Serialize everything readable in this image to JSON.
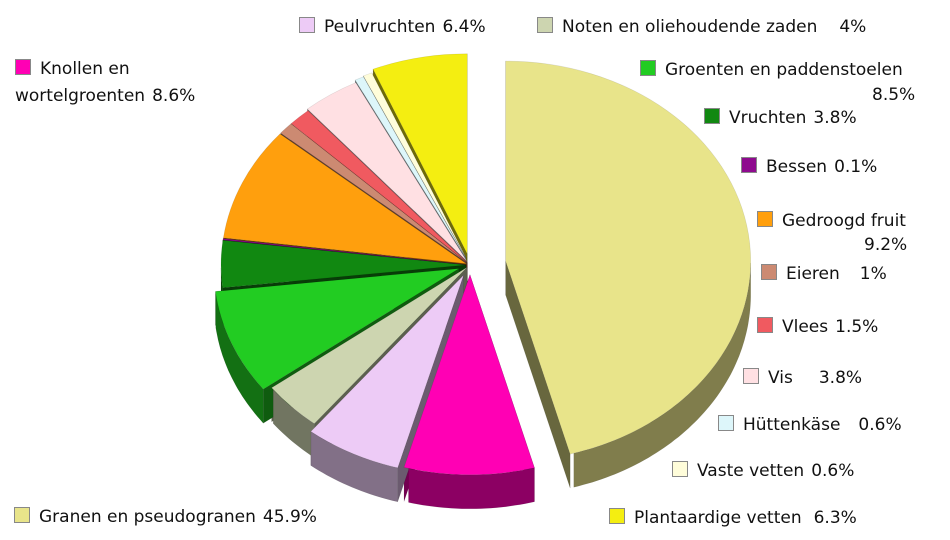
{
  "chart_data": {
    "type": "pie",
    "title": "",
    "slices": [
      {
        "name": "Granen en pseudogranen",
        "value": 45.9,
        "color": "#E8E48A"
      },
      {
        "name": "Knollen en wortelgroenten",
        "value": 8.6,
        "color": "#FF00B4"
      },
      {
        "name": "Peulvruchten",
        "value": 6.4,
        "color": "#EDCBF6"
      },
      {
        "name": "Noten en oliehoudende zaden",
        "value": 4,
        "color": "#CDD5B0"
      },
      {
        "name": "Groenten en paddenstoelen",
        "value": 8.5,
        "color": "#22CC22"
      },
      {
        "name": "Vruchten",
        "value": 3.8,
        "color": "#118811"
      },
      {
        "name": "Bessen",
        "value": 0.1,
        "color": "#8E0A8E"
      },
      {
        "name": "Gedroogd fruit",
        "value": 9.2,
        "color": "#FF9F0D"
      },
      {
        "name": "Eieren",
        "value": 1,
        "color": "#CC8A72"
      },
      {
        "name": "Vlees",
        "value": 1.5,
        "color": "#F05A60"
      },
      {
        "name": "Vis",
        "value": 3.8,
        "color": "#FFE0E3"
      },
      {
        "name": "Hüttenkäse",
        "value": 0.6,
        "color": "#DDF6FA"
      },
      {
        "name": "Vaste vetten",
        "value": 0.6,
        "color": "#FFFDDA"
      },
      {
        "name": "Plantaardige vetten",
        "value": 6.3,
        "color": "#F4EE11"
      }
    ],
    "legend_text": {
      "granen": {
        "name": "Granen en pseudogranen",
        "pct": "45.9%"
      },
      "knollen": {
        "line1": "Knollen en",
        "line2": "wortelgroenten",
        "pct": "8.6%"
      },
      "peul": {
        "name": "Peulvruchten",
        "pct": "6.4%"
      },
      "noten": {
        "name": "Noten en oliehoudende zaden",
        "pct": "4%"
      },
      "groenten": {
        "name": "Groenten en paddenstoelen",
        "pct": "8.5%"
      },
      "vruchten": {
        "name": "Vruchten",
        "pct": "3.8%"
      },
      "bessen": {
        "name": "Bessen",
        "pct": "0.1%"
      },
      "gedroogd": {
        "name": "Gedroogd fruit",
        "pct": "9.2%"
      },
      "eieren": {
        "name": "Eieren",
        "pct": "1%"
      },
      "vlees": {
        "name": "Vlees",
        "pct": "1.5%"
      },
      "vis": {
        "name": "Vis",
        "pct": "3.8%"
      },
      "hutten": {
        "name": "Hüttenkäse",
        "pct": "0.6%"
      },
      "vaste": {
        "name": "Vaste vetten",
        "pct": "0.6%"
      },
      "plant": {
        "name": "Plantaardige vetten",
        "pct": "6.3%"
      }
    }
  }
}
